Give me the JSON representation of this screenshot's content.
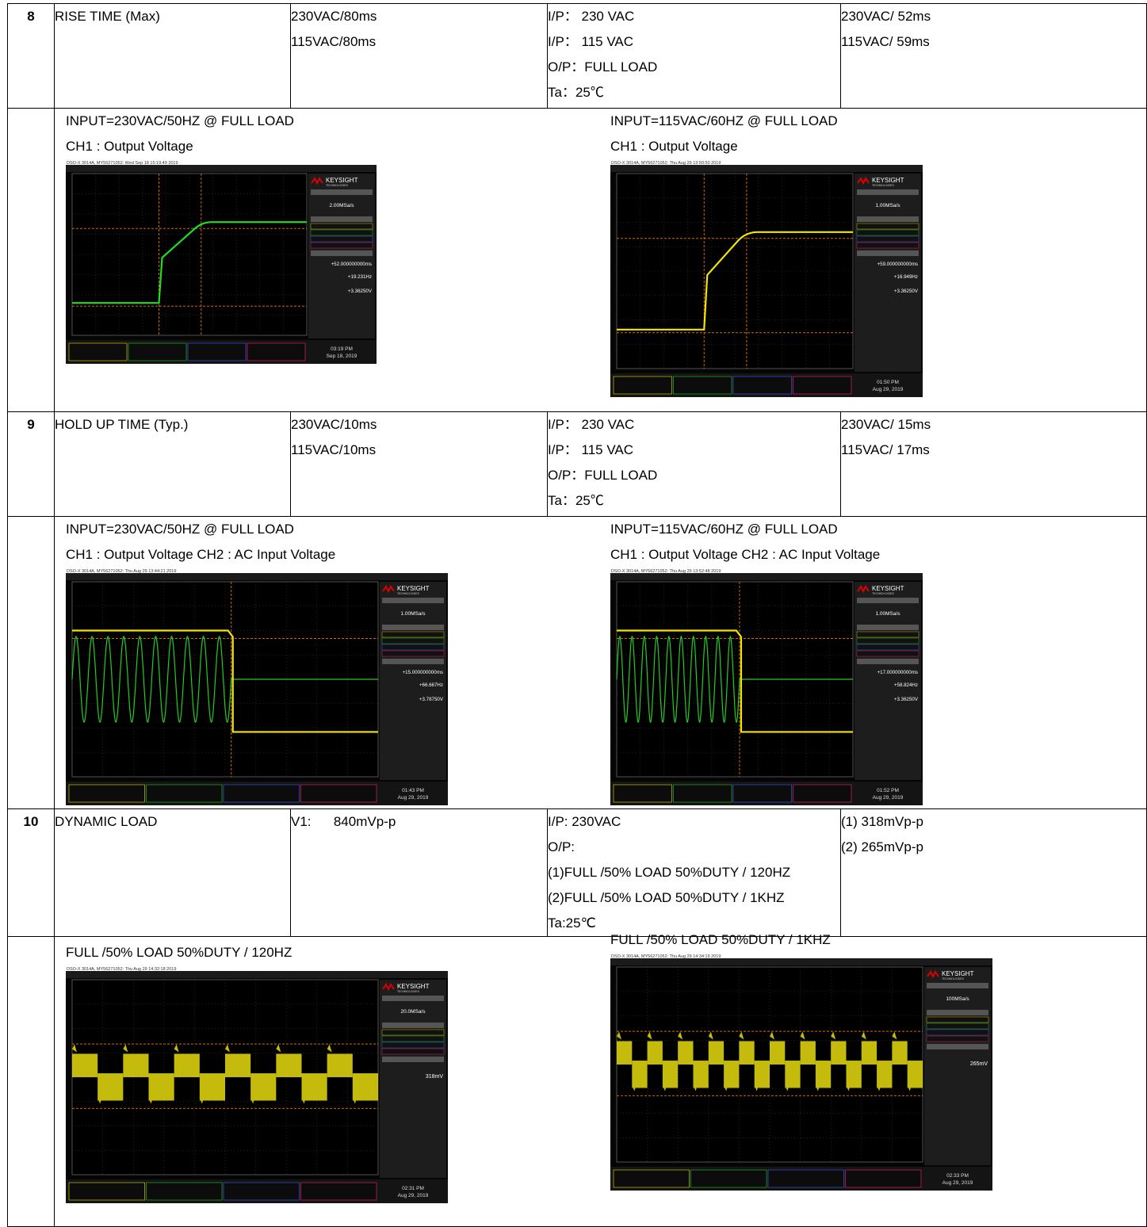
{
  "rows": [
    {
      "no": "8",
      "item": "RISE TIME (Max)",
      "spec": [
        "230VAC/80ms",
        "115VAC/80ms"
      ],
      "condition": [
        "I/P： 230 VAC",
        "I/P： 115 VAC",
        "O/P：FULL LOAD",
        "Ta：25℃"
      ],
      "result": [
        "230VAC/ 52ms",
        "115VAC/ 59ms"
      ],
      "panels": [
        {
          "caption": [
            "INPUT=230VAC/50HZ @ FULL LOAD",
            "CH1 : Output Voltage"
          ],
          "scope": {
            "header": "DSO-X 3014A, MY56271052: Wed Sep 18 15:19:49 2019",
            "brand": "KEYSIGHT",
            "brand_sub": "TECHNOLOGIES",
            "sample_rate": "2.00MSa/s",
            "delta_x": "+52.000000000ms",
            "inv_delta_x": "+19.231Hz",
            "delta_y": "+3.36250V",
            "time": "03:19 PM",
            "date": "Sep 18, 2019",
            "trace_color": "#22dd22"
          }
        },
        {
          "caption": [
            "INPUT=115VAC/60HZ @ FULL LOAD",
            "CH1 : Output Voltage"
          ],
          "scope": {
            "header": "DSO-X 3014A, MY56271052: Thu Aug 29 13:50:50 2019",
            "brand": "KEYSIGHT",
            "brand_sub": "TECHNOLOGIES",
            "sample_rate": "1.00MSa/s",
            "delta_x": "+59.000000000ms",
            "inv_delta_x": "+16.949Hz",
            "delta_y": "+3.36250V",
            "time": "01:50 PM",
            "date": "Aug 29, 2019",
            "trace_color": "#f2e600"
          }
        }
      ]
    },
    {
      "no": "9",
      "item": "HOLD UP TIME (Typ.)",
      "spec": [
        "230VAC/10ms",
        "115VAC/10ms"
      ],
      "condition": [
        "I/P： 230 VAC",
        "I/P： 115 VAC",
        "O/P：FULL LOAD",
        "Ta：25℃"
      ],
      "result": [
        "230VAC/ 15ms",
        "115VAC/ 17ms"
      ],
      "panels": [
        {
          "caption": [
            "INPUT=230VAC/50HZ @ FULL LOAD",
            "CH1 : Output Voltage CH2 : AC Input Voltage"
          ],
          "scope": {
            "header": "DSO-X 3014A, MY56271052: Thu Aug 29 13:44:21 2019",
            "brand": "KEYSIGHT",
            "brand_sub": "TECHNOLOGIES",
            "sample_rate": "1.00MSa/s",
            "delta_x": "+15.000000000ms",
            "inv_delta_x": "+66.667Hz",
            "delta_y": "+3.78750V",
            "time": "01:43 PM",
            "date": "Aug 29, 2019",
            "trace_color": "#f2e600"
          }
        },
        {
          "caption": [
            "INPUT=115VAC/60HZ @ FULL LOAD",
            "CH1 : Output Voltage CH2 : AC Input Voltage"
          ],
          "scope": {
            "header": "DSO-X 3014A, MY56271052: Thu Aug 29 13:52:48 2019",
            "brand": "KEYSIGHT",
            "brand_sub": "TECHNOLOGIES",
            "sample_rate": "1.00MSa/s",
            "delta_x": "+17.000000000ms",
            "inv_delta_x": "+58.824Hz",
            "delta_y": "+3.36250V",
            "time": "01:52 PM",
            "date": "Aug 29, 2019",
            "trace_color": "#f2e600"
          }
        }
      ]
    },
    {
      "no": "10",
      "item": "DYNAMIC LOAD",
      "spec": [
        "V1:      840mVp-p"
      ],
      "condition": [
        "I/P: 230VAC",
        "O/P:",
        "(1)FULL /50% LOAD 50%DUTY / 120HZ",
        "(2)FULL /50% LOAD 50%DUTY / 1KHZ",
        "Ta:25℃"
      ],
      "result": [
        "(1) 318mVp-p",
        "(2) 265mVp-p"
      ],
      "panels": [
        {
          "caption": [
            "FULL /50% LOAD 50%DUTY / 120HZ"
          ],
          "scope": {
            "header": "DSO-X 3014A, MY56271052: Thu Aug 29 14:32:18 2019",
            "brand": "KEYSIGHT",
            "brand_sub": "TECHNOLOGIES",
            "sample_rate": "20.0MSa/s",
            "pk_pk": "318mV",
            "time": "02:31 PM",
            "date": "Aug 29, 2019",
            "trace_color": "#e8dc10"
          }
        },
        {
          "caption": [
            "FULL /50% LOAD 50%DUTY / 1KHZ"
          ],
          "scope": {
            "header": "DSO-X 3014A, MY56271052: Thu Aug 29 14:34:19 2019",
            "brand": "KEYSIGHT",
            "brand_sub": "TECHNOLOGIES",
            "sample_rate": "100MSa/s",
            "pk_pk": "265mV",
            "time": "02:33 PM",
            "date": "Aug 29, 2019",
            "trace_color": "#e8dc10"
          }
        }
      ]
    }
  ]
}
